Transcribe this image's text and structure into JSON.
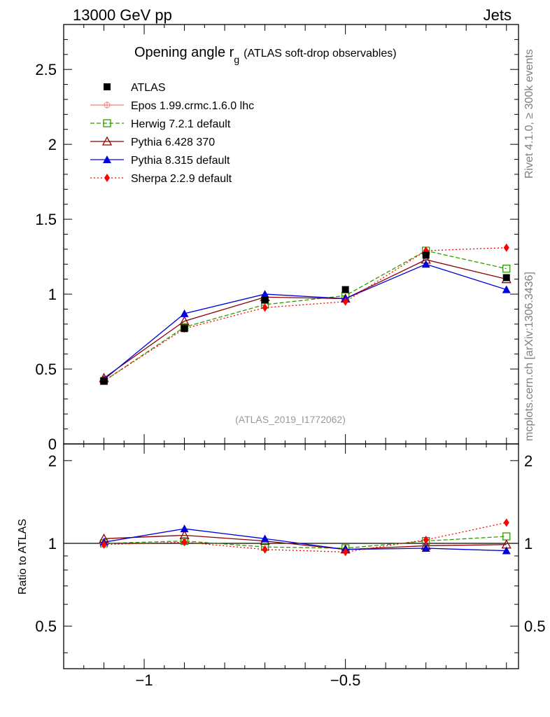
{
  "header": {
    "left": "13000 GeV pp",
    "right": "Jets"
  },
  "side_labels": {
    "rivet": "Rivet 4.1.0, ≥ 300k events",
    "mcplots": "mcplots.cern.ch [arXiv:1306.3436]"
  },
  "chart_data": [
    {
      "type": "line",
      "title_main": "Opening angle r",
      "title_sub": "g",
      "title_suffix": "(ATLAS soft-drop observables)",
      "watermark": "(ATLAS_2019_I1772062)",
      "xlabel": "",
      "ylabel": "",
      "xlim": [
        -1.2,
        -0.07
      ],
      "ylim": [
        0,
        2.8
      ],
      "y_ticks": [
        0.5,
        1,
        1.5,
        2,
        2.5
      ],
      "y_tick_labels": [
        "0.5",
        "1",
        "1.5",
        "2",
        "2.5"
      ],
      "y_zero_label": "0",
      "x": [
        -1.1,
        -0.9,
        -0.7,
        -0.5,
        -0.3,
        -0.1
      ],
      "series": [
        {
          "name": "ATLAS",
          "color": "#000000",
          "marker": "square",
          "line": "none",
          "values": [
            0.42,
            0.77,
            0.96,
            1.03,
            1.26,
            1.11
          ]
        },
        {
          "name": "Epos 1.99.crmc.1.6.0 lhc",
          "color": "#f08080",
          "marker": "cross",
          "line": "solid",
          "values": [
            null,
            null,
            null,
            null,
            null,
            null
          ]
        },
        {
          "name": "Herwig 7.2.1 default",
          "color": "#339900",
          "marker": "open-square",
          "line": "dashed",
          "values": [
            0.42,
            0.78,
            0.93,
            0.99,
            1.29,
            1.17
          ]
        },
        {
          "name": "Pythia 6.428 370",
          "color": "#8b0000",
          "marker": "open-triangle",
          "line": "solid",
          "values": [
            0.44,
            0.82,
            0.98,
            0.97,
            1.23,
            1.1
          ]
        },
        {
          "name": "Pythia 8.315 default",
          "color": "#0000dd",
          "marker": "filled-triangle",
          "line": "solid",
          "values": [
            0.43,
            0.87,
            1.0,
            0.97,
            1.2,
            1.03
          ]
        },
        {
          "name": "Sherpa 2.2.9 default",
          "color": "#ff0000",
          "marker": "diamond",
          "line": "dotted",
          "values": [
            0.42,
            0.77,
            0.91,
            0.95,
            1.29,
            1.31
          ]
        }
      ]
    },
    {
      "type": "line",
      "title": "",
      "xlabel": "",
      "ylabel": "Ratio to ATLAS",
      "xlim": [
        -1.2,
        -0.07
      ],
      "ylim": [
        0.35,
        2.3
      ],
      "y_ticks": [
        0.5,
        1,
        2
      ],
      "y_tick_labels": [
        "0.5",
        "1",
        "2"
      ],
      "x_ticks": [
        -1,
        -0.5
      ],
      "x_tick_labels": [
        "−1",
        "−0.5"
      ],
      "x": [
        -1.1,
        -0.9,
        -0.7,
        -0.5,
        -0.3,
        -0.1
      ],
      "series": [
        {
          "name": "Herwig 7.2.1 default",
          "values": [
            1.0,
            1.02,
            0.97,
            0.96,
            1.02,
            1.06
          ]
        },
        {
          "name": "Pythia 6.428 370",
          "values": [
            1.04,
            1.07,
            1.02,
            0.95,
            0.98,
            0.99
          ]
        },
        {
          "name": "Pythia 8.315 default",
          "values": [
            1.01,
            1.13,
            1.04,
            0.95,
            0.96,
            0.94
          ]
        },
        {
          "name": "Sherpa 2.2.9 default",
          "values": [
            0.99,
            1.01,
            0.95,
            0.93,
            1.03,
            1.19
          ]
        }
      ]
    }
  ]
}
